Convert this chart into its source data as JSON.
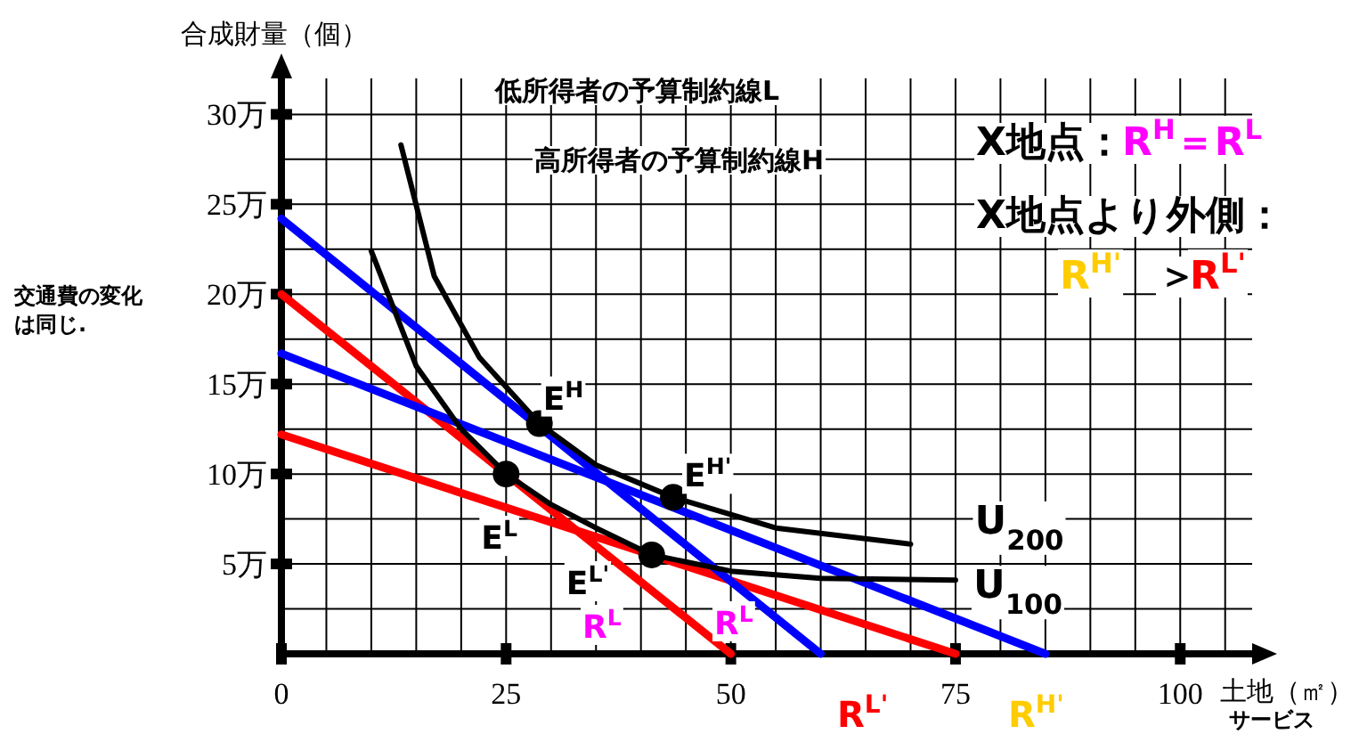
{
  "chart_data": {
    "type": "line",
    "ylabel": "合成財量（個）",
    "xlabel": "土地（㎡）",
    "xlim": [
      0,
      108
    ],
    "ylim": [
      0,
      32
    ],
    "xticks": [
      0,
      {
        "value": 5,
        "label": null
      },
      {
        "value": 10,
        "label": null
      },
      {
        "value": 15,
        "label": null
      },
      {
        "value": 20,
        "label": null
      },
      25,
      {
        "value": 30,
        "label": null
      },
      {
        "value": 35,
        "label": null
      },
      {
        "value": 40,
        "label": null
      },
      {
        "value": 45,
        "label": null
      },
      50,
      {
        "value": 55,
        "label": null
      },
      {
        "value": 60,
        "label": null
      },
      {
        "value": 65,
        "label": null
      },
      {
        "value": 70,
        "label": null
      },
      75,
      {
        "value": 80,
        "label": null
      },
      {
        "value": 85,
        "label": null
      },
      {
        "value": 90,
        "label": null
      },
      {
        "value": 95,
        "label": null
      },
      100,
      {
        "value": 105,
        "label": null
      }
    ],
    "yticks": [
      {
        "value": 2.5,
        "label": null
      },
      {
        "value": 5,
        "label": "5万"
      },
      {
        "value": 7.5,
        "label": null
      },
      {
        "value": 10,
        "label": "10万"
      },
      {
        "value": 12.5,
        "label": null
      },
      {
        "value": 15,
        "label": "15万"
      },
      {
        "value": 17.5,
        "label": null
      },
      {
        "value": 20,
        "label": "20万"
      },
      {
        "value": 22.5,
        "label": null
      },
      {
        "value": 25,
        "label": "25万"
      },
      {
        "value": 27.5,
        "label": null
      },
      {
        "value": 30,
        "label": "30万"
      }
    ],
    "grid": true,
    "line_style": "solid",
    "series": [
      {
        "color": "#ff0000",
        "x": [
          0,
          50
        ],
        "values": [
          20,
          0
        ]
      },
      {
        "color": "#ff0000",
        "x": [
          0,
          75
        ],
        "values": [
          12.2,
          0
        ]
      },
      {
        "color": "#0000ff",
        "x": [
          0,
          60
        ],
        "values": [
          24.2,
          0
        ]
      },
      {
        "color": "#0000ff",
        "x": [
          0,
          85
        ],
        "values": [
          16.7,
          0
        ]
      },
      {
        "name": "U$_{100}$",
        "color": "#000000",
        "x": [
          10,
          15,
          20,
          25,
          30,
          35,
          41.2,
          50,
          60,
          75
        ],
        "values": [
          22.4,
          16,
          12.5,
          10,
          8.3,
          7,
          5.5,
          4.6,
          4.2,
          4.1
        ]
      },
      {
        "name": "U$_{200}$",
        "color": "#000000",
        "x": [
          13.3,
          17,
          22,
          28.7,
          35,
          43.6,
          55,
          70
        ],
        "values": [
          28.3,
          21,
          16.5,
          12.8,
          10.5,
          8.7,
          7,
          6.1
        ]
      },
      {
        "type": "scatter",
        "marker": "circle",
        "color": "#000000",
        "x": [
          25,
          41.2,
          28.7,
          43.6
        ],
        "values": [
          10,
          5.5,
          12.8,
          8.7
        ]
      }
    ],
    "annotations": [
      {
        "text": "E$^{L}$",
        "x": 25,
        "y": 10
      },
      {
        "text": "E$^{L'}$",
        "x": 41.2,
        "y": 5.5
      },
      {
        "text": "E$^{H}$",
        "x": 28.7,
        "y": 12.8
      },
      {
        "text": "E$^{H'}$",
        "x": 43.6,
        "y": 8.7
      },
      "低所得者の予算制約線L",
      "高所得者の予算制約線H",
      "X地点：",
      "R$^{H}$＝R$^{L}$",
      "X地点より外側：",
      "R$^{H'}$",
      "＞",
      "R$^{L'}$",
      "交通費の変化",
      "は同じ.",
      "R$^{L}$",
      "R$^{L}$",
      "R$^{L'}$",
      "R$^{H'}$",
      "サービス"
    ]
  }
}
